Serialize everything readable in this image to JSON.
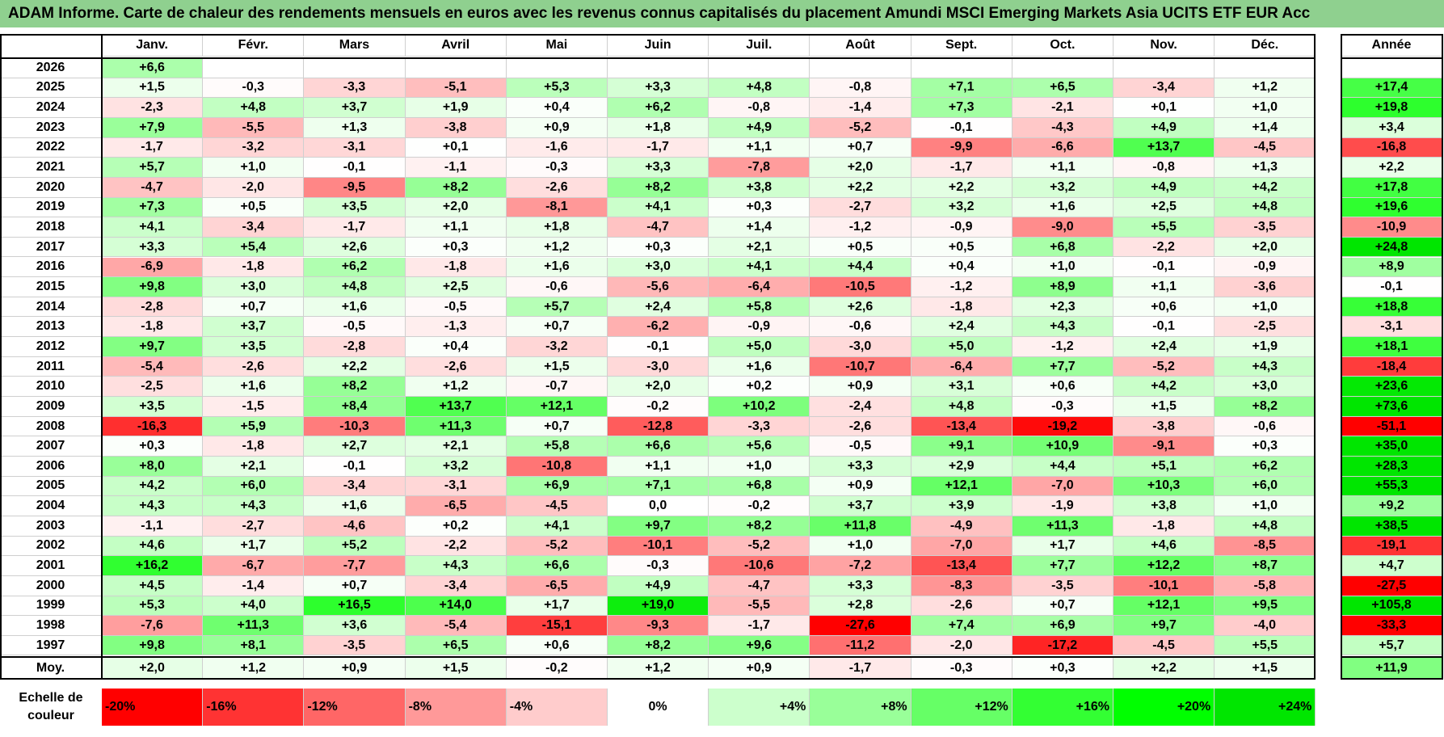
{
  "title": "ADAM Informe. Carte de chaleur des rendements mensuels en euros avec les revenus connus capitalisés du placement Amundi MSCI Emerging Markets Asia UCITS ETF EUR Acc",
  "chart_data": {
    "type": "heatmap",
    "months": [
      "Janv.",
      "Févr.",
      "Mars",
      "Avril",
      "Mai",
      "Juin",
      "Juil.",
      "Août",
      "Sept.",
      "Oct.",
      "Nov.",
      "Déc."
    ],
    "year_header": "Année",
    "rows": [
      {
        "year": "2026",
        "values": [
          6.6,
          null,
          null,
          null,
          null,
          null,
          null,
          null,
          null,
          null,
          null,
          null
        ],
        "annual": null
      },
      {
        "year": "2025",
        "values": [
          1.5,
          -0.3,
          -3.3,
          -5.1,
          5.3,
          3.3,
          4.8,
          -0.8,
          7.1,
          6.5,
          -3.4,
          1.2
        ],
        "annual": 17.4
      },
      {
        "year": "2024",
        "values": [
          -2.3,
          4.8,
          3.7,
          1.9,
          0.4,
          6.2,
          -0.8,
          -1.4,
          7.3,
          -2.1,
          0.1,
          1.0
        ],
        "annual": 19.8
      },
      {
        "year": "2023",
        "values": [
          7.9,
          -5.5,
          1.3,
          -3.8,
          0.9,
          1.8,
          4.9,
          -5.2,
          -0.1,
          -4.3,
          4.9,
          1.4
        ],
        "annual": 3.4
      },
      {
        "year": "2022",
        "values": [
          -1.7,
          -3.2,
          -3.1,
          0.1,
          -1.6,
          -1.7,
          1.1,
          0.7,
          -9.9,
          -6.6,
          13.7,
          -4.5
        ],
        "annual": -16.8
      },
      {
        "year": "2021",
        "values": [
          5.7,
          1.0,
          -0.1,
          -1.1,
          -0.3,
          3.3,
          -7.8,
          2.0,
          -1.7,
          1.1,
          -0.8,
          1.3
        ],
        "annual": 2.2
      },
      {
        "year": "2020",
        "values": [
          -4.7,
          -2.0,
          -9.5,
          8.2,
          -2.6,
          8.2,
          3.8,
          2.2,
          2.2,
          3.2,
          4.9,
          4.2
        ],
        "annual": 17.8
      },
      {
        "year": "2019",
        "values": [
          7.3,
          0.5,
          3.5,
          2.0,
          -8.1,
          4.1,
          0.3,
          -2.7,
          3.2,
          1.6,
          2.5,
          4.8
        ],
        "annual": 19.6
      },
      {
        "year": "2018",
        "values": [
          4.1,
          -3.4,
          -1.7,
          1.1,
          1.8,
          -4.7,
          1.4,
          -1.2,
          -0.9,
          -9.0,
          5.5,
          -3.5
        ],
        "annual": -10.9
      },
      {
        "year": "2017",
        "values": [
          3.3,
          5.4,
          2.6,
          0.3,
          1.2,
          0.3,
          2.1,
          0.5,
          0.5,
          6.8,
          -2.2,
          2.0
        ],
        "annual": 24.8
      },
      {
        "year": "2016",
        "values": [
          -6.9,
          -1.8,
          6.2,
          -1.8,
          1.6,
          3.0,
          4.1,
          4.4,
          0.4,
          1.0,
          -0.1,
          -0.9
        ],
        "annual": 8.9
      },
      {
        "year": "2015",
        "values": [
          9.8,
          3.0,
          4.8,
          2.5,
          -0.6,
          -5.6,
          -6.4,
          -10.5,
          -1.2,
          8.9,
          1.1,
          -3.6
        ],
        "annual": -0.1
      },
      {
        "year": "2014",
        "values": [
          -2.8,
          0.7,
          1.6,
          -0.5,
          5.7,
          2.4,
          5.8,
          2.6,
          -1.8,
          2.3,
          0.6,
          1.0
        ],
        "annual": 18.8
      },
      {
        "year": "2013",
        "values": [
          -1.8,
          3.7,
          -0.5,
          -1.3,
          0.7,
          -6.2,
          -0.9,
          -0.6,
          2.4,
          4.3,
          -0.1,
          -2.5
        ],
        "annual": -3.1
      },
      {
        "year": "2012",
        "values": [
          9.7,
          3.5,
          -2.8,
          0.4,
          -3.2,
          -0.1,
          5.0,
          -3.0,
          5.0,
          -1.2,
          2.4,
          1.9
        ],
        "annual": 18.1
      },
      {
        "year": "2011",
        "values": [
          -5.4,
          -2.6,
          2.2,
          -2.6,
          1.5,
          -3.0,
          1.6,
          -10.7,
          -6.4,
          7.7,
          -5.2,
          4.3
        ],
        "annual": -18.4
      },
      {
        "year": "2010",
        "values": [
          -2.5,
          1.6,
          8.2,
          1.2,
          -0.7,
          2.0,
          0.2,
          0.9,
          3.1,
          0.6,
          4.2,
          3.0
        ],
        "annual": 23.6
      },
      {
        "year": "2009",
        "values": [
          3.5,
          -1.5,
          8.4,
          13.7,
          12.1,
          -0.2,
          10.2,
          -2.4,
          4.8,
          -0.3,
          1.5,
          8.2
        ],
        "annual": 73.6
      },
      {
        "year": "2008",
        "values": [
          -16.3,
          5.9,
          -10.3,
          11.3,
          0.7,
          -12.8,
          -3.3,
          -2.6,
          -13.4,
          -19.2,
          -3.8,
          -0.6
        ],
        "annual": -51.1
      },
      {
        "year": "2007",
        "values": [
          0.3,
          -1.8,
          2.7,
          2.1,
          5.8,
          6.6,
          5.6,
          -0.5,
          9.1,
          10.9,
          -9.1,
          0.3
        ],
        "annual": 35.0
      },
      {
        "year": "2006",
        "values": [
          8.0,
          2.1,
          -0.1,
          3.2,
          -10.8,
          1.1,
          1.0,
          3.3,
          2.9,
          4.4,
          5.1,
          6.2
        ],
        "annual": 28.3
      },
      {
        "year": "2005",
        "values": [
          4.2,
          6.0,
          -3.4,
          -3.1,
          6.9,
          7.1,
          6.8,
          0.9,
          12.1,
          -7.0,
          10.3,
          6.0
        ],
        "annual": 55.3
      },
      {
        "year": "2004",
        "values": [
          4.3,
          4.3,
          1.6,
          -6.5,
          -4.5,
          0.0,
          -0.2,
          3.7,
          3.9,
          -1.9,
          3.8,
          1.0
        ],
        "annual": 9.2
      },
      {
        "year": "2003",
        "values": [
          -1.1,
          -2.7,
          -4.6,
          0.2,
          4.1,
          9.7,
          8.2,
          11.8,
          -4.9,
          11.3,
          -1.8,
          4.8
        ],
        "annual": 38.5
      },
      {
        "year": "2002",
        "values": [
          4.6,
          1.7,
          5.2,
          -2.2,
          -5.2,
          -10.1,
          -5.2,
          1.0,
          -7.0,
          1.7,
          4.6,
          -8.5
        ],
        "annual": -19.1
      },
      {
        "year": "2001",
        "values": [
          16.2,
          -6.7,
          -7.7,
          4.3,
          6.6,
          -0.3,
          -10.6,
          -7.2,
          -13.4,
          7.7,
          12.2,
          8.7
        ],
        "annual": 4.7
      },
      {
        "year": "2000",
        "values": [
          4.5,
          -1.4,
          0.7,
          -3.4,
          -6.5,
          4.9,
          -4.7,
          3.3,
          -8.3,
          -3.5,
          -10.1,
          -5.8
        ],
        "annual": -27.5
      },
      {
        "year": "1999",
        "values": [
          5.3,
          4.0,
          16.5,
          14.0,
          1.7,
          19.0,
          -5.5,
          2.8,
          -2.6,
          0.7,
          12.1,
          9.5
        ],
        "annual": 105.8
      },
      {
        "year": "1998",
        "values": [
          -7.6,
          11.3,
          3.6,
          -5.4,
          -15.1,
          -9.3,
          -1.7,
          -27.6,
          7.4,
          6.9,
          9.7,
          -4.0
        ],
        "annual": -33.3
      },
      {
        "year": "1997",
        "values": [
          9.8,
          8.1,
          -3.5,
          6.5,
          0.6,
          8.2,
          9.6,
          -11.2,
          -2.0,
          -17.2,
          -4.5,
          5.5
        ],
        "annual": 5.7
      }
    ],
    "average": {
      "label": "Moy.",
      "values": [
        2.0,
        1.2,
        0.9,
        1.5,
        -0.2,
        1.2,
        0.9,
        -1.7,
        -0.3,
        0.3,
        2.2,
        1.5
      ],
      "annual": 11.9
    },
    "scale": {
      "label": "Echelle de couleur",
      "steps": [
        {
          "label": "-20%",
          "color": "#ff0000"
        },
        {
          "label": "-16%",
          "color": "#ff3333"
        },
        {
          "label": "-12%",
          "color": "#ff6666"
        },
        {
          "label": "-8%",
          "color": "#ff9999"
        },
        {
          "label": "-4%",
          "color": "#ffcccc"
        },
        {
          "label": "0%",
          "color": "#ffffff"
        },
        {
          "label": "+4%",
          "color": "#ccffcc"
        },
        {
          "label": "+8%",
          "color": "#99ff99"
        },
        {
          "label": "+12%",
          "color": "#66ff66"
        },
        {
          "label": "+16%",
          "color": "#33ff33"
        },
        {
          "label": "+20%",
          "color": "#00ff00"
        },
        {
          "label": "+24%",
          "color": "#00e600"
        }
      ]
    }
  }
}
